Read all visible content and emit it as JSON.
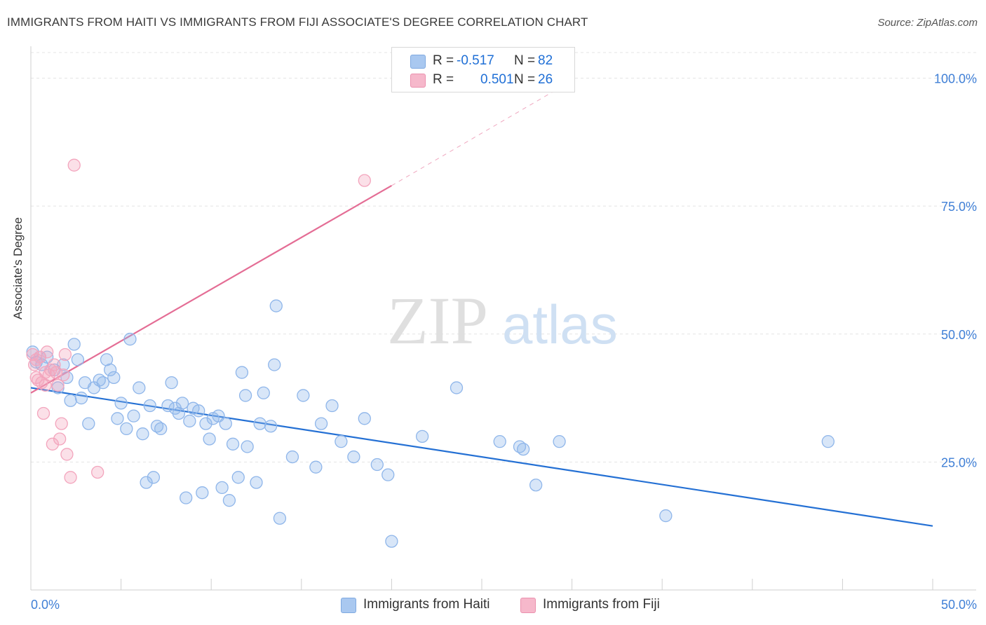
{
  "title": "IMMIGRANTS FROM HAITI VS IMMIGRANTS FROM FIJI ASSOCIATE'S DEGREE CORRELATION CHART",
  "source": "Source: ZipAtlas.com",
  "watermark": {
    "zip": "ZIP",
    "atlas": "atlas"
  },
  "legend": {
    "r_label": "R =",
    "n_label": "N =",
    "rows": [
      {
        "r": "-0.517",
        "n": "82",
        "color": "#a9c8f0"
      },
      {
        "r": "0.501",
        "n": "26",
        "color": "#f6b8cb"
      }
    ]
  },
  "bottom_legend": [
    {
      "label": "Immigrants from Haiti",
      "color": "#a9c8f0"
    },
    {
      "label": "Immigrants from Fiji",
      "color": "#f6b8cb"
    }
  ],
  "chart_data": {
    "type": "scatter",
    "xlabel": "",
    "ylabel": "Associate's Degree",
    "xlim": [
      0,
      50
    ],
    "ylim": [
      0,
      105
    ],
    "x_tick_labels": [
      "0.0%",
      "50.0%"
    ],
    "y_tick_labels": [
      {
        "value": 25,
        "label": "25.0%"
      },
      {
        "value": 50,
        "label": "50.0%"
      },
      {
        "value": 75,
        "label": "75.0%"
      },
      {
        "value": 100,
        "label": "100.0%"
      }
    ],
    "grid": true,
    "series": [
      {
        "name": "Immigrants from Haiti",
        "color": "#8fb6ea",
        "trend_color": "#2470d4",
        "trend": {
          "x": [
            0,
            50
          ],
          "y": [
            39.5,
            12.5
          ]
        },
        "points": [
          [
            0.1,
            46.5
          ],
          [
            0.3,
            44.5
          ],
          [
            0.6,
            44.0
          ],
          [
            0.9,
            45.5
          ],
          [
            1.3,
            43.0
          ],
          [
            1.5,
            39.5
          ],
          [
            1.8,
            44.0
          ],
          [
            2.0,
            41.5
          ],
          [
            2.2,
            37.0
          ],
          [
            2.4,
            48.0
          ],
          [
            2.6,
            45.0
          ],
          [
            2.8,
            37.5
          ],
          [
            3.0,
            40.5
          ],
          [
            3.2,
            32.5
          ],
          [
            3.5,
            39.5
          ],
          [
            3.8,
            41.0
          ],
          [
            4.0,
            40.5
          ],
          [
            4.2,
            45.0
          ],
          [
            4.4,
            43.0
          ],
          [
            4.6,
            41.5
          ],
          [
            4.8,
            33.5
          ],
          [
            5.0,
            36.5
          ],
          [
            5.3,
            31.5
          ],
          [
            5.5,
            49.0
          ],
          [
            5.7,
            34.0
          ],
          [
            6.0,
            39.5
          ],
          [
            6.2,
            30.5
          ],
          [
            6.4,
            21.0
          ],
          [
            6.6,
            36.0
          ],
          [
            6.8,
            22.0
          ],
          [
            7.0,
            32.0
          ],
          [
            7.2,
            31.5
          ],
          [
            7.6,
            36.0
          ],
          [
            7.8,
            40.5
          ],
          [
            8.0,
            35.5
          ],
          [
            8.2,
            34.5
          ],
          [
            8.4,
            36.5
          ],
          [
            8.6,
            18.0
          ],
          [
            8.8,
            33.0
          ],
          [
            9.0,
            35.5
          ],
          [
            9.3,
            35.0
          ],
          [
            9.5,
            19.0
          ],
          [
            9.7,
            32.5
          ],
          [
            9.9,
            29.5
          ],
          [
            10.1,
            33.5
          ],
          [
            10.4,
            34.0
          ],
          [
            10.6,
            20.0
          ],
          [
            10.8,
            32.5
          ],
          [
            11.0,
            17.5
          ],
          [
            11.2,
            28.5
          ],
          [
            11.5,
            22.0
          ],
          [
            11.7,
            42.5
          ],
          [
            11.9,
            38.0
          ],
          [
            12.0,
            28.0
          ],
          [
            12.5,
            21.0
          ],
          [
            12.7,
            32.5
          ],
          [
            12.9,
            38.5
          ],
          [
            13.3,
            32.0
          ],
          [
            13.5,
            44.0
          ],
          [
            13.6,
            55.5
          ],
          [
            13.8,
            14.0
          ],
          [
            14.5,
            26.0
          ],
          [
            15.1,
            38.0
          ],
          [
            15.8,
            24.0
          ],
          [
            16.1,
            32.5
          ],
          [
            16.7,
            36.0
          ],
          [
            17.2,
            29.0
          ],
          [
            17.9,
            26.0
          ],
          [
            18.5,
            33.5
          ],
          [
            19.2,
            24.5
          ],
          [
            19.8,
            22.5
          ],
          [
            20.0,
            9.5
          ],
          [
            21.7,
            30.0
          ],
          [
            23.6,
            39.5
          ],
          [
            26.0,
            29.0
          ],
          [
            27.1,
            28.0
          ],
          [
            27.3,
            27.5
          ],
          [
            28.0,
            20.5
          ],
          [
            29.3,
            29.0
          ],
          [
            35.2,
            14.5
          ],
          [
            44.2,
            29.0
          ],
          [
            0.5,
            45.5
          ]
        ]
      },
      {
        "name": "Immigrants from Fiji",
        "color": "#f3a5bd",
        "trend_color": "#e46d95",
        "trend": {
          "x": [
            0,
            20
          ],
          "y": [
            38.5,
            79.0
          ]
        },
        "trend_extension": {
          "x": [
            20,
            30
          ],
          "y": [
            79.0,
            99.5
          ]
        },
        "points": [
          [
            0.1,
            46.0
          ],
          [
            0.3,
            45.0
          ],
          [
            0.4,
            41.0
          ],
          [
            0.6,
            40.5
          ],
          [
            0.7,
            34.5
          ],
          [
            0.8,
            42.5
          ],
          [
            0.9,
            46.5
          ],
          [
            1.1,
            43.0
          ],
          [
            1.2,
            28.5
          ],
          [
            1.4,
            42.5
          ],
          [
            1.5,
            40.0
          ],
          [
            1.6,
            29.5
          ],
          [
            1.7,
            32.5
          ],
          [
            1.9,
            46.0
          ],
          [
            2.0,
            26.5
          ],
          [
            2.2,
            22.0
          ],
          [
            2.4,
            83.0
          ],
          [
            3.7,
            23.0
          ],
          [
            18.5,
            80.0
          ],
          [
            0.2,
            44.0
          ],
          [
            0.5,
            45.5
          ],
          [
            1.0,
            42.0
          ],
          [
            1.3,
            44.0
          ],
          [
            0.8,
            40.0
          ],
          [
            1.8,
            42.0
          ],
          [
            0.3,
            41.5
          ]
        ]
      }
    ]
  }
}
